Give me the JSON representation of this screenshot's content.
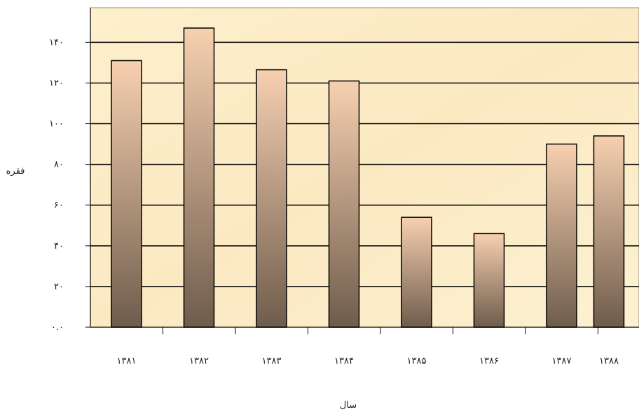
{
  "chart_data": {
    "type": "bar",
    "categories": [
      "۱۳۸۱",
      "۱۳۸۲",
      "۱۳۸۳",
      "۱۳۸۴",
      "۱۳۸۵",
      "۱۳۸۶",
      "۱۳۸۷",
      "۱۳۸۸"
    ],
    "values": [
      131,
      147,
      126.5,
      121,
      54,
      46,
      90,
      94
    ],
    "yticks": [
      0,
      20,
      40,
      60,
      80,
      100,
      120,
      140
    ],
    "ytick_labels": [
      "۰.۰",
      "۲۰",
      "۴۰",
      "۶۰",
      "۸۰",
      "۱۰۰",
      "۱۲۰",
      "۱۴۰"
    ],
    "ylim": [
      0,
      157
    ],
    "xlabel": "سال",
    "ylabel": "فقره",
    "grid": true,
    "legend": "none",
    "colors": {
      "plot_background": "#fcefc9",
      "bar_top": "#f7d0b0",
      "bar_bottom": "#6e5c4c",
      "bar_border": "#000000",
      "grid": "#000000"
    }
  }
}
